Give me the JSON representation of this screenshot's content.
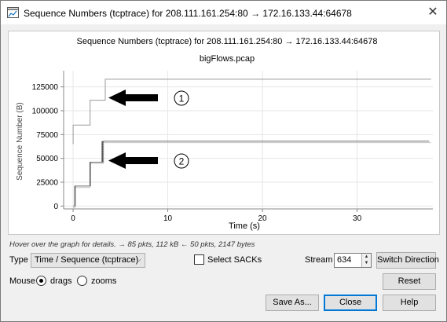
{
  "window": {
    "title": "Sequence Numbers (tcptrace) for 208.111.161.254:80 → 172.16.133.44:64678",
    "close_glyph": "✕",
    "icon": "wireshark-graph-icon"
  },
  "graph": {
    "title": "Sequence Numbers (tcptrace) for 208.111.161.254:80 → 172.16.133.44:64678",
    "subtitle": "bigFlows.pcap",
    "annotations": [
      {
        "marker": "①",
        "arrow": "left-arrow"
      },
      {
        "marker": "②",
        "arrow": "left-arrow"
      }
    ]
  },
  "chart_data": {
    "type": "line",
    "title": "Sequence Numbers (tcptrace) for 208.111.161.254:80 → 172.16.133.44:64678",
    "subtitle": "bigFlows.pcap",
    "xlabel": "Time (s)",
    "ylabel": "Sequence Number (B)",
    "xlim": [
      -1,
      38
    ],
    "ylim": [
      -3000,
      142000
    ],
    "x_ticks": [
      0,
      10,
      20,
      30
    ],
    "y_ticks": [
      0,
      25000,
      50000,
      75000,
      100000,
      125000
    ],
    "y_tick_labels": [
      "0",
      "25000",
      "50000",
      "75000",
      "100000",
      "125000"
    ],
    "grid": true,
    "series": [
      {
        "role": "window",
        "color": "#9a9a9a",
        "x": [
          0,
          0,
          1.8,
          1.8,
          3.4,
          3.4,
          37.8
        ],
        "y": [
          65000,
          85000,
          85000,
          111000,
          111000,
          133000,
          133000
        ]
      },
      {
        "role": "sequence",
        "color": "#6e6e6e",
        "x": [
          0,
          0.2,
          0.2,
          1.8,
          1.8,
          3.2,
          3.2,
          37.6
        ],
        "y": [
          0,
          0,
          21000,
          21000,
          46000,
          46000,
          68000,
          68000
        ]
      },
      {
        "role": "ack",
        "color": "#c4c4c4",
        "x": [
          0,
          0.2,
          0.2,
          1.8,
          1.8,
          3.2,
          3.2,
          37.8
        ],
        "y": [
          -1500,
          -1500,
          19500,
          19500,
          44500,
          44500,
          66500,
          66500
        ]
      }
    ]
  },
  "hint_text": "Hover over the graph for details. → 85 pkts, 112 kB ← 50 pkts, 2147 bytes",
  "controls": {
    "type_label": "Type",
    "type_value": "Time / Sequence (tcptrace)",
    "select_sacks_label": "Select SACKs",
    "select_sacks_checked": false,
    "stream_label": "Stream",
    "stream_value": "634",
    "switch_direction_label": "Switch Direction",
    "mouse_label": "Mouse",
    "mouse_options": [
      "drags",
      "zooms"
    ],
    "mouse_selected": "drags",
    "reset_label": "Reset",
    "save_as_label": "Save As...",
    "close_label": "Close",
    "help_label": "Help"
  }
}
